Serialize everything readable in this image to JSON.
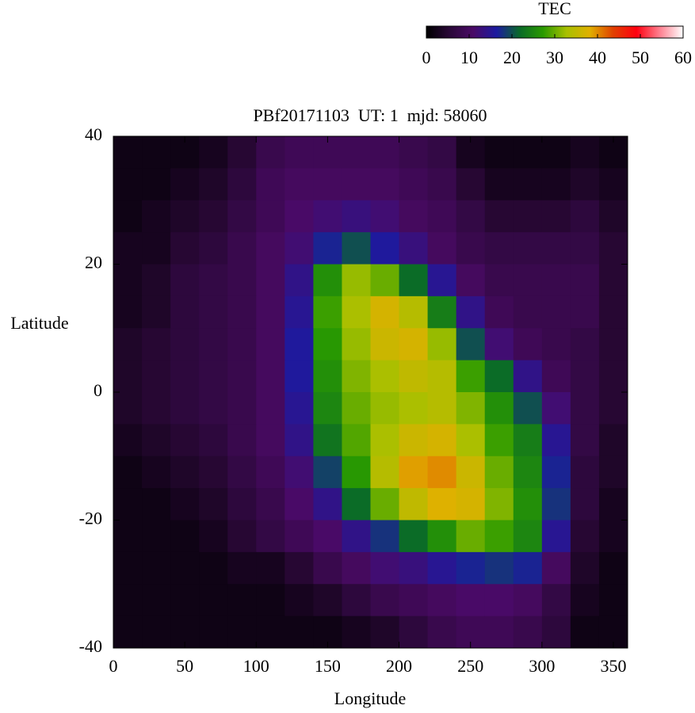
{
  "chart_data": {
    "type": "heatmap",
    "title": "PBf20171103  UT: 1  mjd: 58060",
    "xlabel": "Longitude",
    "ylabel": "Latitude",
    "colorbar_title": "TEC",
    "x": [
      10,
      30,
      50,
      70,
      90,
      110,
      130,
      150,
      170,
      190,
      210,
      230,
      250,
      270,
      290,
      310,
      330,
      350
    ],
    "y": [
      37.5,
      32.5,
      27.5,
      22.5,
      17.5,
      12.5,
      7.5,
      2.5,
      -2.5,
      -7.5,
      -12.5,
      -17.5,
      -22.5,
      -27.5,
      -32.5,
      -37.5
    ],
    "z": [
      [
        2,
        2,
        2,
        3,
        5,
        8,
        9,
        9,
        9,
        9,
        8,
        7,
        3,
        2,
        2,
        2,
        3,
        2
      ],
      [
        2,
        2,
        3,
        4,
        6,
        9,
        10,
        10,
        10,
        10,
        9,
        8,
        5,
        3,
        3,
        3,
        4,
        3
      ],
      [
        2,
        3,
        4,
        5,
        7,
        9,
        11,
        12,
        13,
        12,
        10,
        9,
        7,
        5,
        5,
        5,
        6,
        4
      ],
      [
        3,
        3,
        5,
        6,
        8,
        10,
        12,
        17,
        20,
        16,
        13,
        10,
        8,
        7,
        7,
        7,
        7,
        5
      ],
      [
        3,
        4,
        6,
        7,
        8,
        10,
        14,
        26,
        32,
        30,
        22,
        15,
        10,
        8,
        8,
        8,
        8,
        5
      ],
      [
        3,
        4,
        6,
        7,
        8,
        10,
        15,
        28,
        33,
        37,
        34,
        24,
        14,
        9,
        8,
        8,
        8,
        5
      ],
      [
        4,
        5,
        6,
        7,
        8,
        10,
        16,
        27,
        32,
        36,
        37,
        32,
        20,
        12,
        9,
        8,
        7,
        5
      ],
      [
        4,
        5,
        6,
        7,
        8,
        10,
        16,
        26,
        31,
        33,
        35,
        34,
        28,
        22,
        14,
        9,
        7,
        5
      ],
      [
        4,
        5,
        6,
        7,
        8,
        10,
        15,
        25,
        30,
        32,
        33,
        34,
        31,
        26,
        20,
        12,
        7,
        5
      ],
      [
        3,
        4,
        5,
        6,
        8,
        10,
        14,
        23,
        29,
        33,
        36,
        37,
        33,
        28,
        24,
        15,
        7,
        4
      ],
      [
        2,
        3,
        4,
        5,
        7,
        9,
        12,
        19,
        27,
        34,
        39,
        40,
        36,
        30,
        25,
        17,
        6,
        4
      ],
      [
        2,
        2,
        3,
        4,
        6,
        8,
        11,
        14,
        22,
        30,
        35,
        38,
        37,
        31,
        26,
        18,
        6,
        3
      ],
      [
        2,
        2,
        2,
        3,
        5,
        7,
        9,
        11,
        14,
        18,
        22,
        26,
        30,
        28,
        25,
        15,
        5,
        3
      ],
      [
        2,
        2,
        2,
        2,
        3,
        3,
        5,
        8,
        10,
        12,
        13,
        15,
        17,
        18,
        17,
        10,
        4,
        2
      ],
      [
        2,
        2,
        2,
        2,
        2,
        2,
        3,
        4,
        6,
        8,
        9,
        10,
        11,
        11,
        10,
        7,
        3,
        2
      ],
      [
        2,
        2,
        2,
        2,
        2,
        2,
        2,
        2,
        3,
        4,
        6,
        8,
        9,
        9,
        8,
        6,
        2,
        2
      ]
    ],
    "xlim": [
      0,
      360
    ],
    "xticks": [
      0,
      50,
      100,
      150,
      200,
      250,
      300,
      350
    ],
    "ylim": [
      -40,
      40
    ],
    "yticks": [
      -40,
      -20,
      0,
      20,
      40
    ],
    "zlim": [
      0,
      60
    ],
    "zticks": [
      0,
      10,
      20,
      30,
      40,
      50,
      60
    ],
    "colors": [
      "#000000",
      "#2a0838",
      "#4a0a66",
      "#1c1aa0",
      "#0a6a28",
      "#2a9a00",
      "#a8c000",
      "#e0b000",
      "#e04000",
      "#ff0010",
      "#ff8090",
      "#ffffff"
    ]
  }
}
